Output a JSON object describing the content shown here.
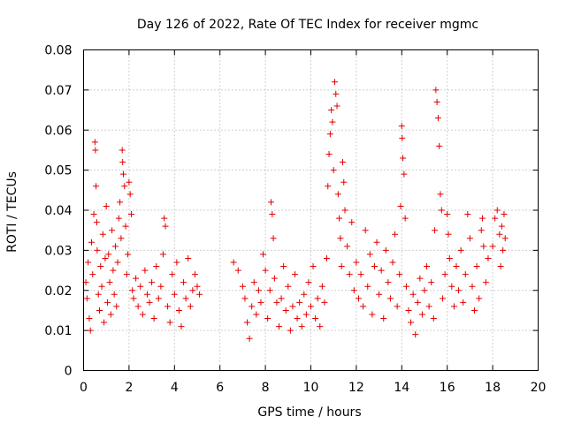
{
  "chart_data": {
    "type": "scatter",
    "title": "Day 126 of 2022, Rate Of TEC Index for receiver mgmc",
    "xlabel": "GPS time / hours",
    "ylabel": "ROTI / TECUs",
    "xlim": [
      0,
      20
    ],
    "ylim": [
      0,
      0.08
    ],
    "x_ticks": [
      0,
      2,
      4,
      6,
      8,
      10,
      12,
      14,
      16,
      18,
      20
    ],
    "x_tick_labels": [
      "0",
      "2",
      "4",
      "6",
      "8",
      "10",
      "12",
      "14",
      "16",
      "18",
      "20"
    ],
    "y_ticks": [
      0,
      0.01,
      0.02,
      0.03,
      0.04,
      0.05,
      0.06,
      0.07,
      0.08
    ],
    "y_tick_labels": [
      "0",
      "0.01",
      "0.02",
      "0.03",
      "0.04",
      "0.05",
      "0.06",
      "0.07",
      "0.08"
    ],
    "grid": true,
    "marker": "+",
    "color": "#e00000",
    "series": [
      {
        "name": "ROTI",
        "points": [
          [
            0.1,
            0.022
          ],
          [
            0.15,
            0.018
          ],
          [
            0.2,
            0.027
          ],
          [
            0.25,
            0.013
          ],
          [
            0.3,
            0.01
          ],
          [
            0.35,
            0.032
          ],
          [
            0.4,
            0.024
          ],
          [
            0.45,
            0.039
          ],
          [
            0.5,
            0.057
          ],
          [
            0.52,
            0.055
          ],
          [
            0.55,
            0.046
          ],
          [
            0.58,
            0.037
          ],
          [
            0.6,
            0.03
          ],
          [
            0.65,
            0.019
          ],
          [
            0.7,
            0.015
          ],
          [
            0.75,
            0.026
          ],
          [
            0.8,
            0.021
          ],
          [
            0.85,
            0.034
          ],
          [
            0.9,
            0.012
          ],
          [
            0.95,
            0.028
          ],
          [
            1.0,
            0.041
          ],
          [
            1.05,
            0.017
          ],
          [
            1.1,
            0.029
          ],
          [
            1.15,
            0.022
          ],
          [
            1.2,
            0.014
          ],
          [
            1.25,
            0.035
          ],
          [
            1.3,
            0.025
          ],
          [
            1.35,
            0.019
          ],
          [
            1.4,
            0.031
          ],
          [
            1.45,
            0.016
          ],
          [
            1.5,
            0.027
          ],
          [
            1.55,
            0.038
          ],
          [
            1.6,
            0.042
          ],
          [
            1.65,
            0.033
          ],
          [
            1.7,
            0.055
          ],
          [
            1.72,
            0.052
          ],
          [
            1.75,
            0.049
          ],
          [
            1.8,
            0.046
          ],
          [
            1.85,
            0.036
          ],
          [
            1.9,
            0.024
          ],
          [
            1.95,
            0.029
          ],
          [
            2.0,
            0.047
          ],
          [
            2.05,
            0.044
          ],
          [
            2.1,
            0.039
          ],
          [
            2.15,
            0.02
          ],
          [
            2.2,
            0.018
          ],
          [
            2.3,
            0.023
          ],
          [
            2.4,
            0.016
          ],
          [
            2.5,
            0.021
          ],
          [
            2.6,
            0.014
          ],
          [
            2.7,
            0.025
          ],
          [
            2.8,
            0.019
          ],
          [
            2.9,
            0.017
          ],
          [
            3.0,
            0.022
          ],
          [
            3.1,
            0.013
          ],
          [
            3.2,
            0.026
          ],
          [
            3.3,
            0.018
          ],
          [
            3.4,
            0.021
          ],
          [
            3.5,
            0.029
          ],
          [
            3.55,
            0.038
          ],
          [
            3.6,
            0.036
          ],
          [
            3.7,
            0.016
          ],
          [
            3.8,
            0.012
          ],
          [
            3.9,
            0.024
          ],
          [
            4.0,
            0.019
          ],
          [
            4.1,
            0.027
          ],
          [
            4.2,
            0.015
          ],
          [
            4.3,
            0.011
          ],
          [
            4.4,
            0.022
          ],
          [
            4.5,
            0.018
          ],
          [
            4.6,
            0.028
          ],
          [
            4.7,
            0.016
          ],
          [
            4.8,
            0.02
          ],
          [
            4.9,
            0.024
          ],
          [
            5.0,
            0.021
          ],
          [
            5.1,
            0.019
          ],
          [
            6.6,
            0.027
          ],
          [
            6.8,
            0.025
          ],
          [
            7.0,
            0.021
          ],
          [
            7.1,
            0.018
          ],
          [
            7.2,
            0.012
          ],
          [
            7.3,
            0.008
          ],
          [
            7.4,
            0.016
          ],
          [
            7.5,
            0.022
          ],
          [
            7.6,
            0.014
          ],
          [
            7.7,
            0.02
          ],
          [
            7.8,
            0.017
          ],
          [
            7.9,
            0.029
          ],
          [
            8.0,
            0.025
          ],
          [
            8.1,
            0.013
          ],
          [
            8.2,
            0.02
          ],
          [
            8.25,
            0.042
          ],
          [
            8.3,
            0.039
          ],
          [
            8.35,
            0.033
          ],
          [
            8.4,
            0.023
          ],
          [
            8.5,
            0.017
          ],
          [
            8.6,
            0.011
          ],
          [
            8.7,
            0.018
          ],
          [
            8.8,
            0.026
          ],
          [
            8.9,
            0.015
          ],
          [
            9.0,
            0.021
          ],
          [
            9.1,
            0.01
          ],
          [
            9.2,
            0.016
          ],
          [
            9.3,
            0.024
          ],
          [
            9.4,
            0.013
          ],
          [
            9.5,
            0.017
          ],
          [
            9.6,
            0.011
          ],
          [
            9.7,
            0.019
          ],
          [
            9.8,
            0.014
          ],
          [
            9.9,
            0.022
          ],
          [
            10.0,
            0.016
          ],
          [
            10.1,
            0.026
          ],
          [
            10.2,
            0.013
          ],
          [
            10.3,
            0.018
          ],
          [
            10.4,
            0.011
          ],
          [
            10.5,
            0.021
          ],
          [
            10.6,
            0.017
          ],
          [
            10.7,
            0.028
          ],
          [
            10.75,
            0.046
          ],
          [
            10.8,
            0.054
          ],
          [
            10.85,
            0.059
          ],
          [
            10.9,
            0.065
          ],
          [
            10.95,
            0.062
          ],
          [
            11.0,
            0.05
          ],
          [
            11.05,
            0.072
          ],
          [
            11.1,
            0.069
          ],
          [
            11.15,
            0.066
          ],
          [
            11.2,
            0.044
          ],
          [
            11.25,
            0.038
          ],
          [
            11.3,
            0.033
          ],
          [
            11.35,
            0.026
          ],
          [
            11.4,
            0.052
          ],
          [
            11.45,
            0.047
          ],
          [
            11.5,
            0.04
          ],
          [
            11.6,
            0.031
          ],
          [
            11.7,
            0.024
          ],
          [
            11.8,
            0.037
          ],
          [
            11.9,
            0.02
          ],
          [
            12.0,
            0.027
          ],
          [
            12.1,
            0.018
          ],
          [
            12.2,
            0.024
          ],
          [
            12.3,
            0.016
          ],
          [
            12.4,
            0.035
          ],
          [
            12.5,
            0.021
          ],
          [
            12.6,
            0.029
          ],
          [
            12.7,
            0.014
          ],
          [
            12.8,
            0.026
          ],
          [
            12.9,
            0.032
          ],
          [
            13.0,
            0.019
          ],
          [
            13.1,
            0.025
          ],
          [
            13.2,
            0.013
          ],
          [
            13.3,
            0.03
          ],
          [
            13.4,
            0.022
          ],
          [
            13.5,
            0.018
          ],
          [
            13.6,
            0.027
          ],
          [
            13.7,
            0.034
          ],
          [
            13.8,
            0.016
          ],
          [
            13.9,
            0.024
          ],
          [
            13.95,
            0.041
          ],
          [
            14.0,
            0.061
          ],
          [
            14.02,
            0.058
          ],
          [
            14.05,
            0.053
          ],
          [
            14.1,
            0.049
          ],
          [
            14.15,
            0.038
          ],
          [
            14.2,
            0.021
          ],
          [
            14.3,
            0.015
          ],
          [
            14.4,
            0.012
          ],
          [
            14.5,
            0.019
          ],
          [
            14.6,
            0.009
          ],
          [
            14.7,
            0.017
          ],
          [
            14.8,
            0.023
          ],
          [
            14.9,
            0.014
          ],
          [
            15.0,
            0.02
          ],
          [
            15.1,
            0.026
          ],
          [
            15.2,
            0.016
          ],
          [
            15.3,
            0.022
          ],
          [
            15.4,
            0.013
          ],
          [
            15.45,
            0.035
          ],
          [
            15.5,
            0.07
          ],
          [
            15.55,
            0.067
          ],
          [
            15.6,
            0.063
          ],
          [
            15.65,
            0.056
          ],
          [
            15.7,
            0.044
          ],
          [
            15.75,
            0.04
          ],
          [
            15.8,
            0.018
          ],
          [
            15.9,
            0.024
          ],
          [
            16.0,
            0.039
          ],
          [
            16.05,
            0.034
          ],
          [
            16.1,
            0.028
          ],
          [
            16.2,
            0.021
          ],
          [
            16.3,
            0.016
          ],
          [
            16.4,
            0.026
          ],
          [
            16.5,
            0.02
          ],
          [
            16.6,
            0.03
          ],
          [
            16.7,
            0.017
          ],
          [
            16.8,
            0.024
          ],
          [
            16.9,
            0.039
          ],
          [
            17.0,
            0.033
          ],
          [
            17.1,
            0.021
          ],
          [
            17.2,
            0.015
          ],
          [
            17.3,
            0.026
          ],
          [
            17.4,
            0.018
          ],
          [
            17.5,
            0.035
          ],
          [
            17.55,
            0.038
          ],
          [
            17.6,
            0.031
          ],
          [
            17.7,
            0.022
          ],
          [
            17.8,
            0.028
          ],
          [
            18.0,
            0.031
          ],
          [
            18.1,
            0.038
          ],
          [
            18.2,
            0.04
          ],
          [
            18.3,
            0.034
          ],
          [
            18.35,
            0.026
          ],
          [
            18.4,
            0.036
          ],
          [
            18.45,
            0.03
          ],
          [
            18.5,
            0.039
          ],
          [
            18.55,
            0.033
          ]
        ]
      }
    ]
  }
}
